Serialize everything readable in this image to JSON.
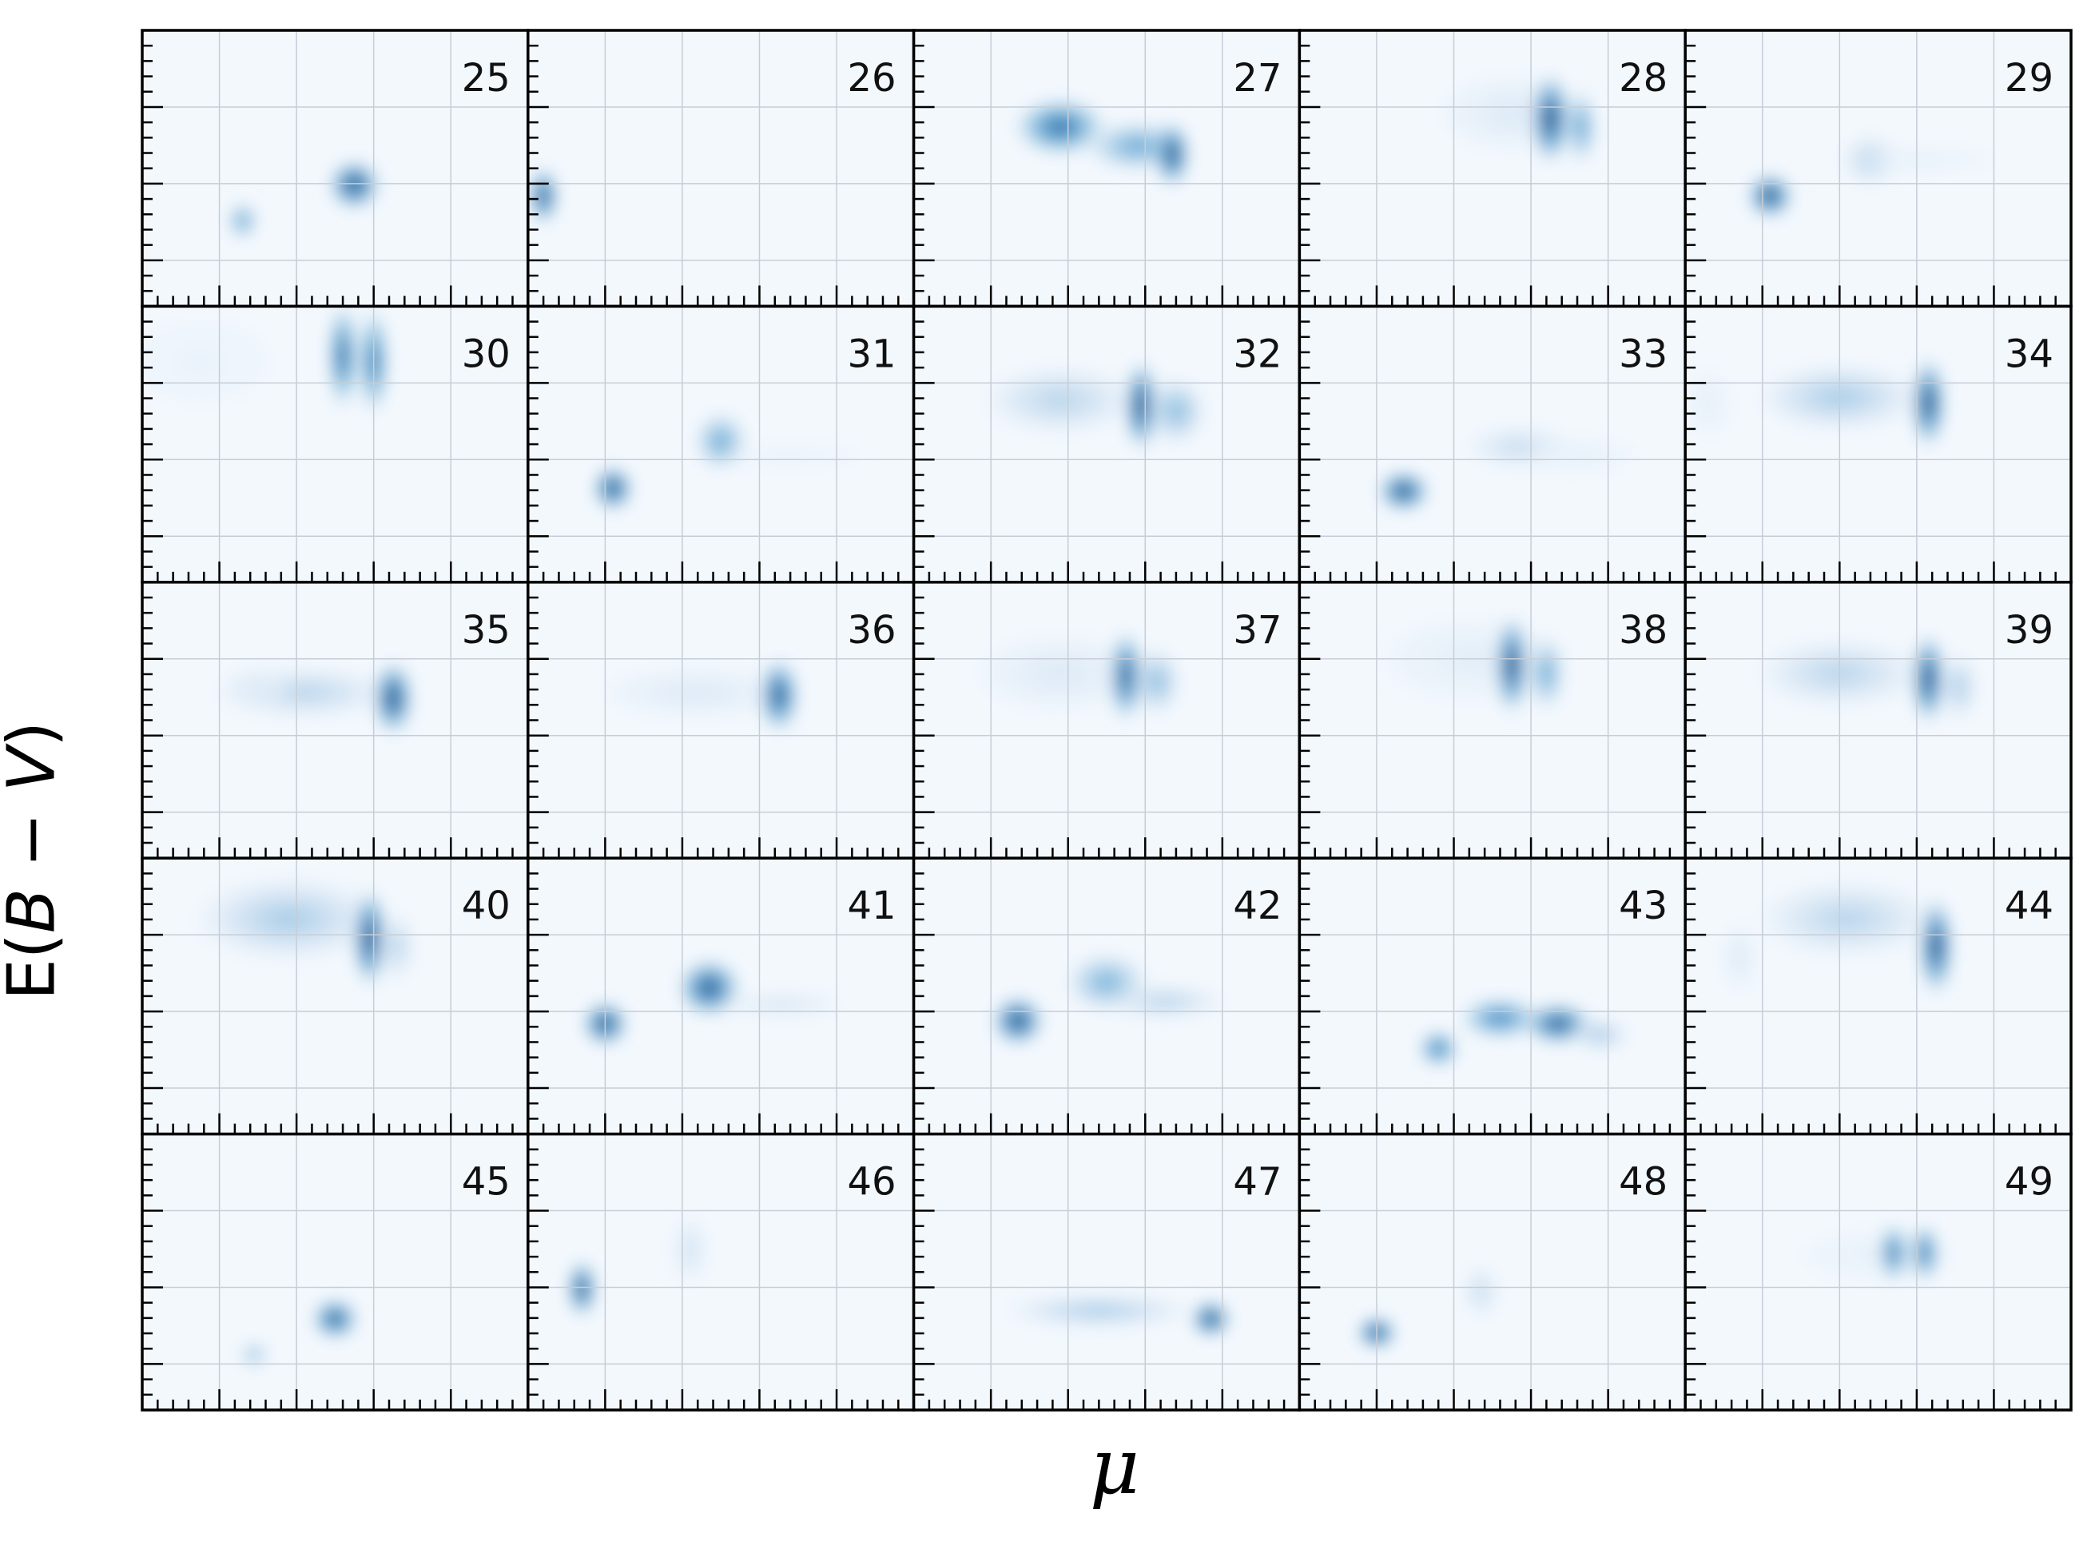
{
  "figure": {
    "xlabel": "μ",
    "ylabel_prefix": "E(",
    "ylabel_var1": "B",
    "ylabel_minus": " − ",
    "ylabel_var2": "V",
    "ylabel_suffix": ")",
    "colormap": [
      "#f7fbff",
      "#c6dbef",
      "#6baed6",
      "#2171b5",
      "#08306b"
    ],
    "grid": true,
    "rows": 5,
    "cols": 5
  },
  "chart_data": {
    "type": "heatmap",
    "title": "",
    "xlabel": "μ",
    "ylabel": "E(B − V)",
    "x_range": [
      0,
      1
    ],
    "y_range": [
      0,
      1
    ],
    "panels": [
      {
        "label": "25",
        "blobs": [
          {
            "x": 0.26,
            "y": 0.31,
            "sx": 0.025,
            "sy": 0.045,
            "a": 0.6
          },
          {
            "x": 0.55,
            "y": 0.44,
            "sx": 0.045,
            "sy": 0.06,
            "a": 0.95
          }
        ]
      },
      {
        "label": "26",
        "blobs": [
          {
            "x": 0.04,
            "y": 0.4,
            "sx": 0.025,
            "sy": 0.07,
            "a": 0.95
          }
        ]
      },
      {
        "label": "27",
        "blobs": [
          {
            "x": 0.38,
            "y": 0.65,
            "sx": 0.08,
            "sy": 0.07,
            "a": 0.8
          },
          {
            "x": 0.58,
            "y": 0.58,
            "sx": 0.09,
            "sy": 0.06,
            "a": 0.55
          },
          {
            "x": 0.67,
            "y": 0.55,
            "sx": 0.03,
            "sy": 0.08,
            "a": 0.95
          }
        ]
      },
      {
        "label": "28",
        "blobs": [
          {
            "x": 0.55,
            "y": 0.7,
            "sx": 0.12,
            "sy": 0.09,
            "a": 0.15
          },
          {
            "x": 0.65,
            "y": 0.68,
            "sx": 0.035,
            "sy": 0.11,
            "a": 0.95
          },
          {
            "x": 0.73,
            "y": 0.65,
            "sx": 0.025,
            "sy": 0.09,
            "a": 0.6
          }
        ]
      },
      {
        "label": "29",
        "blobs": [
          {
            "x": 0.22,
            "y": 0.4,
            "sx": 0.04,
            "sy": 0.055,
            "a": 0.95
          },
          {
            "x": 0.48,
            "y": 0.53,
            "sx": 0.05,
            "sy": 0.06,
            "a": 0.3
          },
          {
            "x": 0.62,
            "y": 0.53,
            "sx": 0.12,
            "sy": 0.03,
            "a": 0.1
          }
        ]
      },
      {
        "label": "30",
        "blobs": [
          {
            "x": 0.52,
            "y": 0.82,
            "sx": 0.025,
            "sy": 0.13,
            "a": 0.85
          },
          {
            "x": 0.6,
            "y": 0.8,
            "sx": 0.025,
            "sy": 0.13,
            "a": 0.8
          },
          {
            "x": 0.15,
            "y": 0.8,
            "sx": 0.12,
            "sy": 0.1,
            "a": 0.08
          }
        ]
      },
      {
        "label": "31",
        "blobs": [
          {
            "x": 0.22,
            "y": 0.34,
            "sx": 0.035,
            "sy": 0.055,
            "a": 0.95
          },
          {
            "x": 0.5,
            "y": 0.51,
            "sx": 0.045,
            "sy": 0.07,
            "a": 0.55
          },
          {
            "x": 0.68,
            "y": 0.46,
            "sx": 0.12,
            "sy": 0.03,
            "a": 0.08
          }
        ]
      },
      {
        "label": "32",
        "blobs": [
          {
            "x": 0.38,
            "y": 0.66,
            "sx": 0.13,
            "sy": 0.08,
            "a": 0.3
          },
          {
            "x": 0.59,
            "y": 0.64,
            "sx": 0.03,
            "sy": 0.11,
            "a": 0.95
          },
          {
            "x": 0.68,
            "y": 0.62,
            "sx": 0.05,
            "sy": 0.08,
            "a": 0.45
          }
        ]
      },
      {
        "label": "33",
        "blobs": [
          {
            "x": 0.27,
            "y": 0.33,
            "sx": 0.045,
            "sy": 0.05,
            "a": 0.95
          },
          {
            "x": 0.57,
            "y": 0.49,
            "sx": 0.09,
            "sy": 0.05,
            "a": 0.25
          },
          {
            "x": 0.72,
            "y": 0.46,
            "sx": 0.1,
            "sy": 0.04,
            "a": 0.1
          }
        ]
      },
      {
        "label": "34",
        "blobs": [
          {
            "x": 0.4,
            "y": 0.67,
            "sx": 0.14,
            "sy": 0.08,
            "a": 0.35
          },
          {
            "x": 0.63,
            "y": 0.65,
            "sx": 0.03,
            "sy": 0.11,
            "a": 0.95
          },
          {
            "x": 0.06,
            "y": 0.65,
            "sx": 0.04,
            "sy": 0.08,
            "a": 0.1
          }
        ]
      },
      {
        "label": "35",
        "blobs": [
          {
            "x": 0.42,
            "y": 0.6,
            "sx": 0.15,
            "sy": 0.06,
            "a": 0.3
          },
          {
            "x": 0.65,
            "y": 0.58,
            "sx": 0.035,
            "sy": 0.09,
            "a": 0.95
          },
          {
            "x": 0.3,
            "y": 0.62,
            "sx": 0.06,
            "sy": 0.05,
            "a": 0.15
          }
        ]
      },
      {
        "label": "36",
        "blobs": [
          {
            "x": 0.44,
            "y": 0.6,
            "sx": 0.16,
            "sy": 0.06,
            "a": 0.15
          },
          {
            "x": 0.65,
            "y": 0.59,
            "sx": 0.035,
            "sy": 0.09,
            "a": 0.9
          }
        ]
      },
      {
        "label": "37",
        "blobs": [
          {
            "x": 0.38,
            "y": 0.67,
            "sx": 0.14,
            "sy": 0.09,
            "a": 0.15
          },
          {
            "x": 0.55,
            "y": 0.66,
            "sx": 0.03,
            "sy": 0.11,
            "a": 0.9
          },
          {
            "x": 0.63,
            "y": 0.64,
            "sx": 0.04,
            "sy": 0.08,
            "a": 0.45
          }
        ]
      },
      {
        "label": "38",
        "blobs": [
          {
            "x": 0.45,
            "y": 0.72,
            "sx": 0.15,
            "sy": 0.1,
            "a": 0.12
          },
          {
            "x": 0.55,
            "y": 0.7,
            "sx": 0.03,
            "sy": 0.12,
            "a": 0.95
          },
          {
            "x": 0.64,
            "y": 0.67,
            "sx": 0.03,
            "sy": 0.09,
            "a": 0.55
          }
        ]
      },
      {
        "label": "39",
        "blobs": [
          {
            "x": 0.4,
            "y": 0.67,
            "sx": 0.14,
            "sy": 0.08,
            "a": 0.3
          },
          {
            "x": 0.63,
            "y": 0.65,
            "sx": 0.03,
            "sy": 0.11,
            "a": 0.95
          },
          {
            "x": 0.71,
            "y": 0.62,
            "sx": 0.03,
            "sy": 0.08,
            "a": 0.35
          }
        ]
      },
      {
        "label": "40",
        "blobs": [
          {
            "x": 0.38,
            "y": 0.78,
            "sx": 0.16,
            "sy": 0.1,
            "a": 0.35
          },
          {
            "x": 0.59,
            "y": 0.71,
            "sx": 0.03,
            "sy": 0.12,
            "a": 0.95
          },
          {
            "x": 0.66,
            "y": 0.68,
            "sx": 0.03,
            "sy": 0.08,
            "a": 0.3
          }
        ]
      },
      {
        "label": "41",
        "blobs": [
          {
            "x": 0.2,
            "y": 0.4,
            "sx": 0.04,
            "sy": 0.055,
            "a": 0.95
          },
          {
            "x": 0.47,
            "y": 0.53,
            "sx": 0.055,
            "sy": 0.07,
            "a": 0.9
          },
          {
            "x": 0.66,
            "y": 0.47,
            "sx": 0.1,
            "sy": 0.03,
            "a": 0.18
          }
        ]
      },
      {
        "label": "42",
        "blobs": [
          {
            "x": 0.27,
            "y": 0.41,
            "sx": 0.045,
            "sy": 0.06,
            "a": 0.95
          },
          {
            "x": 0.5,
            "y": 0.55,
            "sx": 0.07,
            "sy": 0.07,
            "a": 0.5
          },
          {
            "x": 0.65,
            "y": 0.48,
            "sx": 0.1,
            "sy": 0.04,
            "a": 0.3
          }
        ]
      },
      {
        "label": "43",
        "blobs": [
          {
            "x": 0.36,
            "y": 0.31,
            "sx": 0.035,
            "sy": 0.045,
            "a": 0.75
          },
          {
            "x": 0.52,
            "y": 0.42,
            "sx": 0.07,
            "sy": 0.05,
            "a": 0.7
          },
          {
            "x": 0.67,
            "y": 0.4,
            "sx": 0.06,
            "sy": 0.05,
            "a": 0.9
          },
          {
            "x": 0.78,
            "y": 0.36,
            "sx": 0.05,
            "sy": 0.04,
            "a": 0.35
          }
        ]
      },
      {
        "label": "44",
        "blobs": [
          {
            "x": 0.42,
            "y": 0.78,
            "sx": 0.15,
            "sy": 0.09,
            "a": 0.3
          },
          {
            "x": 0.65,
            "y": 0.68,
            "sx": 0.03,
            "sy": 0.12,
            "a": 0.95
          },
          {
            "x": 0.14,
            "y": 0.64,
            "sx": 0.03,
            "sy": 0.08,
            "a": 0.15
          }
        ]
      },
      {
        "label": "45",
        "blobs": [
          {
            "x": 0.29,
            "y": 0.2,
            "sx": 0.025,
            "sy": 0.03,
            "a": 0.45
          },
          {
            "x": 0.5,
            "y": 0.33,
            "sx": 0.04,
            "sy": 0.05,
            "a": 0.9
          }
        ]
      },
      {
        "label": "46",
        "blobs": [
          {
            "x": 0.14,
            "y": 0.44,
            "sx": 0.025,
            "sy": 0.07,
            "a": 0.95
          },
          {
            "x": 0.42,
            "y": 0.58,
            "sx": 0.03,
            "sy": 0.08,
            "a": 0.2
          }
        ]
      },
      {
        "label": "47",
        "blobs": [
          {
            "x": 0.48,
            "y": 0.36,
            "sx": 0.16,
            "sy": 0.04,
            "a": 0.35
          },
          {
            "x": 0.77,
            "y": 0.33,
            "sx": 0.035,
            "sy": 0.045,
            "a": 0.95
          }
        ]
      },
      {
        "label": "48",
        "blobs": [
          {
            "x": 0.2,
            "y": 0.28,
            "sx": 0.035,
            "sy": 0.04,
            "a": 0.95
          },
          {
            "x": 0.47,
            "y": 0.43,
            "sx": 0.03,
            "sy": 0.06,
            "a": 0.25
          }
        ]
      },
      {
        "label": "49",
        "blobs": [
          {
            "x": 0.5,
            "y": 0.56,
            "sx": 0.13,
            "sy": 0.06,
            "a": 0.1
          },
          {
            "x": 0.54,
            "y": 0.57,
            "sx": 0.025,
            "sy": 0.07,
            "a": 0.8
          },
          {
            "x": 0.62,
            "y": 0.57,
            "sx": 0.025,
            "sy": 0.07,
            "a": 0.8
          }
        ]
      }
    ]
  }
}
